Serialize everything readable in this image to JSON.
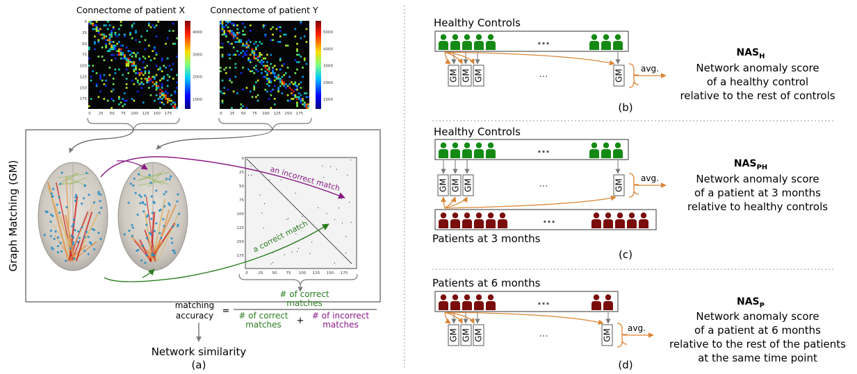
{
  "panel_a": {
    "heatmap_x": {
      "title": "Connectome of patient X",
      "x_ticks": [
        "0",
        "25",
        "50",
        "75",
        "100",
        "125",
        "150",
        "175"
      ],
      "y_ticks": [
        "0",
        "25",
        "50",
        "75",
        "100",
        "125",
        "150",
        "175"
      ],
      "colorbar_ticks": [
        "4000",
        "3000",
        "2000",
        "1000"
      ]
    },
    "heatmap_y": {
      "title": "Connectome of patient Y",
      "x_ticks": [
        "0",
        "25",
        "50",
        "75",
        "100",
        "125",
        "150",
        "175"
      ],
      "colorbar_ticks": [
        "5000",
        "4000",
        "3000",
        "2000",
        "1000"
      ]
    },
    "side_label": "Graph Matching (GM)",
    "match_matrix": {
      "x_ticks": [
        "0",
        "25",
        "50",
        "75",
        "100",
        "125",
        "150",
        "175"
      ],
      "y_ticks": [
        "0",
        "25",
        "50",
        "75",
        "100",
        "125",
        "150",
        "175"
      ]
    },
    "incorrect_match_label": "an incorrect match",
    "correct_match_label": "a correct match",
    "accuracy": {
      "lhs_line1": "matching",
      "lhs_line2": "accuracy",
      "equals": "=",
      "num_line1": "# of correct",
      "num_line2": "matches",
      "den_correct_line1": "# of correct",
      "den_correct_line2": "matches",
      "plus": "+",
      "den_incorrect_line1": "# of incorrect",
      "den_incorrect_line2": "matches"
    },
    "output_label": "Network similarity",
    "caption": "(a)"
  },
  "panel_b": {
    "group_label": "Healthy Controls",
    "ellipsis": "...",
    "gm_label": "GM",
    "avg_label": "avg.",
    "score_title": "NAS",
    "score_sub": "H",
    "desc": [
      "Network anomaly score",
      "of a healthy control",
      "relative to the rest of controls"
    ],
    "caption": "(b)"
  },
  "panel_c": {
    "top_group_label": "Healthy Controls",
    "bottom_group_label": "Patients at 3 months",
    "ellipsis": "...",
    "gm_label": "GM",
    "avg_label": "avg.",
    "score_title": "NAS",
    "score_sub": "PH",
    "desc": [
      "Network anomaly score",
      "of a patient at 3 months",
      "relative to healthy controls"
    ],
    "caption": "(c)"
  },
  "panel_d": {
    "group_label": "Patients at 6 months",
    "ellipsis": "...",
    "gm_label": "GM",
    "avg_label": "avg.",
    "score_title": "NAS",
    "score_sub": "P",
    "desc": [
      "Network anomaly score",
      "of a patient at 6 months",
      "relative to the rest of the patients",
      "at the same time point"
    ],
    "caption": "(d)"
  },
  "colors": {
    "healthy": "#148a14",
    "patient": "#7a0c0c",
    "orange_arrow": "#d98436",
    "purple": "#8a1a86",
    "green_text": "#2a7d1f",
    "gray_arrow": "#8a8a8a"
  }
}
